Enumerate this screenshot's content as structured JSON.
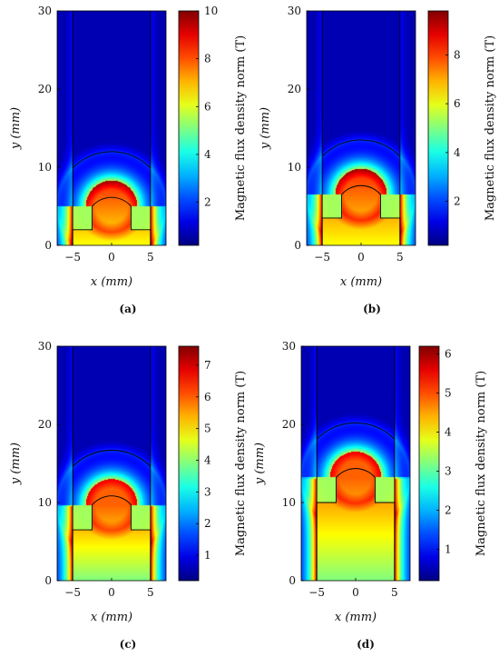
{
  "chart_data": [
    {
      "type": "heatmap",
      "caption": "(a)",
      "xlabel": "x (mm)",
      "ylabel": "y (mm)",
      "xlim": [
        -7,
        7
      ],
      "ylim": [
        0,
        30
      ],
      "x_ticks": [
        "−5",
        "0",
        "5"
      ],
      "y_ticks": [
        "0",
        "10",
        "20",
        "30"
      ],
      "colorbar": {
        "label": "Magnetic flux density norm (T)",
        "range": [
          0.2,
          10
        ],
        "ticks": [
          "2",
          "4",
          "6",
          "8",
          "10"
        ]
      },
      "geometry": {
        "shoulder_mm": 2,
        "cap_center_mm": 5,
        "inner_radius_mm": 3.3,
        "boundary_radius_mm": 7.0,
        "stem_half_width_mm": 2.5,
        "outer_half_width_mm": 5
      },
      "peak_T": 10
    },
    {
      "type": "heatmap",
      "caption": "(b)",
      "xlabel": "x (mm)",
      "ylabel": "y (mm)",
      "xlim": [
        -7,
        7
      ],
      "ylim": [
        0,
        30
      ],
      "x_ticks": [
        "−5",
        "0",
        "5"
      ],
      "y_ticks": [
        "0",
        "10",
        "20",
        "30"
      ],
      "colorbar": {
        "label": "Magnetic flux density norm (T)",
        "range": [
          0.2,
          9.8
        ],
        "ticks": [
          "2",
          "4",
          "6",
          "8"
        ]
      },
      "geometry": {
        "shoulder_mm": 3.5,
        "cap_center_mm": 6.5,
        "inner_radius_mm": 3.3,
        "boundary_radius_mm": 7.0,
        "stem_half_width_mm": 2.5,
        "outer_half_width_mm": 5
      },
      "peak_T": 9.8
    },
    {
      "type": "heatmap",
      "caption": "(c)",
      "xlabel": "x (mm)",
      "ylabel": "y (mm)",
      "xlim": [
        -7,
        7
      ],
      "ylim": [
        0,
        30
      ],
      "x_ticks": [
        "−5",
        "0",
        "5"
      ],
      "y_ticks": [
        "0",
        "10",
        "20",
        "30"
      ],
      "colorbar": {
        "label": "Magnetic flux density norm (T)",
        "range": [
          0.2,
          7.6
        ],
        "ticks": [
          "1",
          "2",
          "3",
          "4",
          "5",
          "6",
          "7"
        ]
      },
      "geometry": {
        "shoulder_mm": 6.5,
        "cap_center_mm": 9.7,
        "inner_radius_mm": 3.3,
        "boundary_radius_mm": 7.0,
        "stem_half_width_mm": 2.5,
        "outer_half_width_mm": 5
      },
      "peak_T": 7.6
    },
    {
      "type": "heatmap",
      "caption": "(d)",
      "xlabel": "x (mm)",
      "ylabel": "y (mm)",
      "xlim": [
        -7,
        7
      ],
      "ylim": [
        0,
        30
      ],
      "x_ticks": [
        "−5",
        "0",
        "5"
      ],
      "y_ticks": [
        "0",
        "10",
        "20",
        "30"
      ],
      "colorbar": {
        "label": "Magnetic flux density norm (T)",
        "range": [
          0.2,
          6.2
        ],
        "ticks": [
          "1",
          "2",
          "3",
          "4",
          "5",
          "6"
        ]
      },
      "geometry": {
        "shoulder_mm": 10,
        "cap_center_mm": 13.2,
        "inner_radius_mm": 3.3,
        "boundary_radius_mm": 7.0,
        "stem_half_width_mm": 2.5,
        "outer_half_width_mm": 5
      },
      "peak_T": 6.2
    }
  ]
}
